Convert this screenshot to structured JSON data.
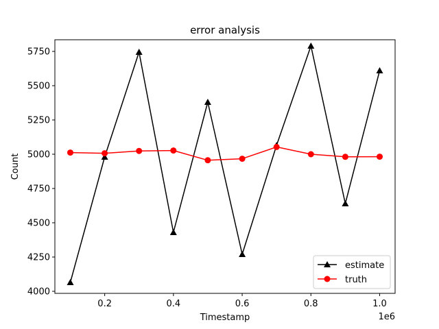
{
  "chart_data": {
    "type": "line",
    "title": "error analysis",
    "xlabel": "Timestamp",
    "ylabel": "Count",
    "x_offset_label": "1e6",
    "x": [
      100000,
      200000,
      300000,
      400000,
      500000,
      600000,
      700000,
      800000,
      900000,
      1000000
    ],
    "xlim": [
      55000,
      1045000
    ],
    "ylim": [
      3985,
      5835
    ],
    "x_ticks": [
      200000,
      400000,
      600000,
      800000,
      1000000
    ],
    "x_tick_labels": [
      "0.2",
      "0.4",
      "0.6",
      "0.8",
      "1.0"
    ],
    "y_ticks": [
      4000,
      4250,
      4500,
      4750,
      5000,
      5250,
      5500,
      5750
    ],
    "y_tick_labels": [
      "4000",
      "4250",
      "4500",
      "4750",
      "5000",
      "5250",
      "5500",
      "5750"
    ],
    "grid": false,
    "legend_position": "lower-right",
    "series": [
      {
        "name": "estimate",
        "color": "#000000",
        "marker": "triangle-up",
        "values": [
          4065,
          4980,
          5745,
          4430,
          5380,
          4270,
          5065,
          5790,
          4640,
          5610
        ]
      },
      {
        "name": "truth",
        "color": "#ff0000",
        "marker": "circle",
        "values": [
          5012,
          5007,
          5024,
          5027,
          4956,
          4967,
          5053,
          5000,
          4981,
          4982
        ]
      }
    ]
  }
}
